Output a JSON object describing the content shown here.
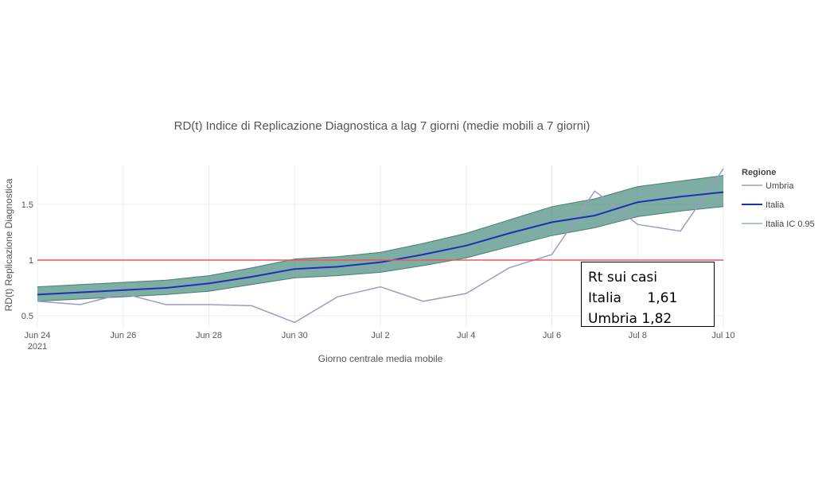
{
  "chart_data": {
    "type": "line",
    "title": "RD(t) Indice di Replicazione Diagnostica a lag 7 giorni (medie mobili a 7 giorni)",
    "xlabel": "Giorno centrale media mobile",
    "ylabel": "RD(t) Replicazione Diagnostica",
    "x": [
      "2021-06-24",
      "2021-06-25",
      "2021-06-26",
      "2021-06-27",
      "2021-06-28",
      "2021-06-29",
      "2021-06-30",
      "2021-07-01",
      "2021-07-02",
      "2021-07-03",
      "2021-07-04",
      "2021-07-05",
      "2021-07-06",
      "2021-07-07",
      "2021-07-08",
      "2021-07-09",
      "2021-07-10"
    ],
    "x_ticks": [
      {
        "date": "2021-06-24",
        "label": "Jun 24",
        "sublabel": "2021"
      },
      {
        "date": "2021-06-26",
        "label": "Jun 26",
        "sublabel": ""
      },
      {
        "date": "2021-06-28",
        "label": "Jun 28",
        "sublabel": ""
      },
      {
        "date": "2021-06-30",
        "label": "Jun 30",
        "sublabel": ""
      },
      {
        "date": "2021-07-02",
        "label": "Jul 2",
        "sublabel": ""
      },
      {
        "date": "2021-07-04",
        "label": "Jul 4",
        "sublabel": ""
      },
      {
        "date": "2021-07-06",
        "label": "Jul 6",
        "sublabel": ""
      },
      {
        "date": "2021-07-08",
        "label": "Jul 8",
        "sublabel": ""
      },
      {
        "date": "2021-07-10",
        "label": "Jul 10",
        "sublabel": ""
      }
    ],
    "y_ticks": [
      {
        "value": 0.5,
        "label": "0.5"
      },
      {
        "value": 1,
        "label": "1"
      },
      {
        "value": 1.5,
        "label": "1.5"
      }
    ],
    "xlim": [
      "2021-06-24",
      "2021-07-10"
    ],
    "ylim": [
      0.4,
      1.85
    ],
    "grid": true,
    "reference_line": {
      "y": 1,
      "color": "#e8595b"
    },
    "series": [
      {
        "name": "Umbria",
        "color": "#9c9cc4",
        "values": [
          0.63,
          0.6,
          0.7,
          0.6,
          0.6,
          0.59,
          0.44,
          0.67,
          0.76,
          0.63,
          0.7,
          0.93,
          1.05,
          1.62,
          1.32,
          1.26,
          1.82
        ]
      },
      {
        "name": "Italia",
        "color": "#1f2fb4",
        "values": [
          0.69,
          0.71,
          0.73,
          0.75,
          0.79,
          0.85,
          0.92,
          0.94,
          0.98,
          1.05,
          1.13,
          1.24,
          1.34,
          1.4,
          1.52,
          1.57,
          1.61
        ]
      }
    ],
    "band": {
      "name": "Italia IC 0.95",
      "color": "#2e7d6a",
      "line_color": "#8fb8ad",
      "lower": [
        0.63,
        0.65,
        0.67,
        0.69,
        0.72,
        0.78,
        0.84,
        0.86,
        0.89,
        0.95,
        1.02,
        1.12,
        1.22,
        1.29,
        1.39,
        1.44,
        1.48
      ],
      "upper": [
        0.76,
        0.78,
        0.8,
        0.82,
        0.86,
        0.93,
        1.01,
        1.03,
        1.07,
        1.15,
        1.24,
        1.36,
        1.48,
        1.55,
        1.66,
        1.71,
        1.76
      ]
    },
    "legend": {
      "title": "Regione",
      "position": "right",
      "entries": [
        {
          "label": "Umbria",
          "color": "#9c9cc4"
        },
        {
          "label": "Italia",
          "color": "#1f2fb4"
        },
        {
          "label": "Italia IC 0.95",
          "color": "#8fb8ad"
        }
      ]
    },
    "annotation": {
      "heading": "Rt sui casi",
      "rows": [
        {
          "label": "Italia",
          "spacer": "      ",
          "value": "1,61"
        },
        {
          "label": "Umbria",
          "spacer": " ",
          "value": "1,82"
        }
      ]
    }
  }
}
